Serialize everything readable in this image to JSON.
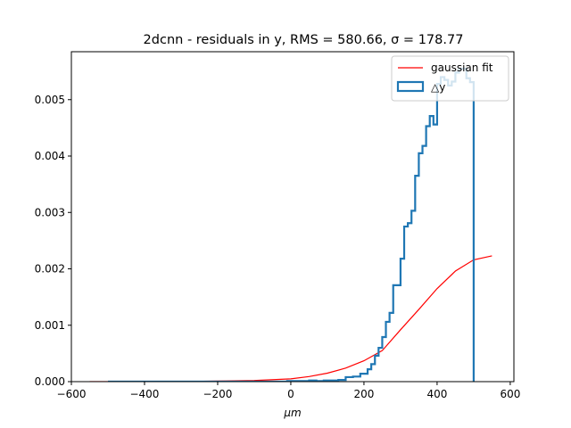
{
  "chart_data": {
    "type": "histogram",
    "title": "2dcnn - residuals in y, RMS = 580.66, σ = 178.77",
    "xlabel": "μm",
    "ylabel": "",
    "xlim": [
      -600,
      610
    ],
    "ylim": [
      0,
      0.00585
    ],
    "x_ticks": [
      -600,
      -400,
      -200,
      0,
      200,
      400,
      600
    ],
    "x_tick_labels": [
      "−600",
      "−400",
      "−200",
      "0",
      "200",
      "400",
      "600"
    ],
    "y_ticks": [
      0,
      0.001,
      0.002,
      0.003,
      0.004,
      0.005
    ],
    "y_tick_labels": [
      "0.000",
      "0.001",
      "0.002",
      "0.003",
      "0.004",
      "0.005"
    ],
    "legend": {
      "placement": "top-right",
      "entries": [
        {
          "label": "gaussian fit",
          "color": "#ff0000",
          "style": "line"
        },
        {
          "label": "△y",
          "color": "#1f77b4",
          "style": "step"
        }
      ]
    },
    "series": [
      {
        "name": "gaussian fit",
        "kind": "line",
        "color": "#ff0000",
        "x": [
          -550,
          -500,
          -400,
          -300,
          -200,
          -100,
          0,
          50,
          100,
          150,
          200,
          250,
          300,
          350,
          400,
          450,
          500,
          550
        ],
        "y": [
          0.0,
          0.0,
          0.0,
          0.0,
          1e-05,
          2e-05,
          5e-05,
          9e-05,
          0.00015,
          0.00024,
          0.00037,
          0.00055,
          0.00092,
          0.00128,
          0.00165,
          0.00196,
          0.00216,
          0.00223
        ]
      },
      {
        "name": "△y",
        "kind": "step",
        "color": "#1f77b4",
        "bin_edges": [
          -500,
          -10,
          10,
          30,
          50,
          70,
          90,
          110,
          130,
          150,
          170,
          190,
          210,
          220,
          230,
          240,
          250,
          260,
          270,
          280,
          290,
          300,
          310,
          320,
          330,
          340,
          350,
          360,
          370,
          380,
          390,
          400,
          410,
          420,
          430,
          440,
          450,
          460,
          470,
          480,
          490,
          500
        ],
        "values": [
          0.0,
          1e-05,
          1e-05,
          1e-05,
          2e-05,
          1e-05,
          2e-05,
          2e-05,
          3e-05,
          8e-05,
          9e-05,
          0.00014,
          0.00022,
          0.00031,
          0.00046,
          0.0006,
          0.00079,
          0.00106,
          0.00122,
          0.00171,
          0.00171,
          0.00218,
          0.00275,
          0.00281,
          0.00303,
          0.00365,
          0.00405,
          0.00418,
          0.00453,
          0.00471,
          0.00456,
          0.00528,
          0.0054,
          0.00535,
          0.00525,
          0.00532,
          0.00548,
          0.00555,
          0.00555,
          0.00538,
          0.00531
        ]
      }
    ]
  }
}
